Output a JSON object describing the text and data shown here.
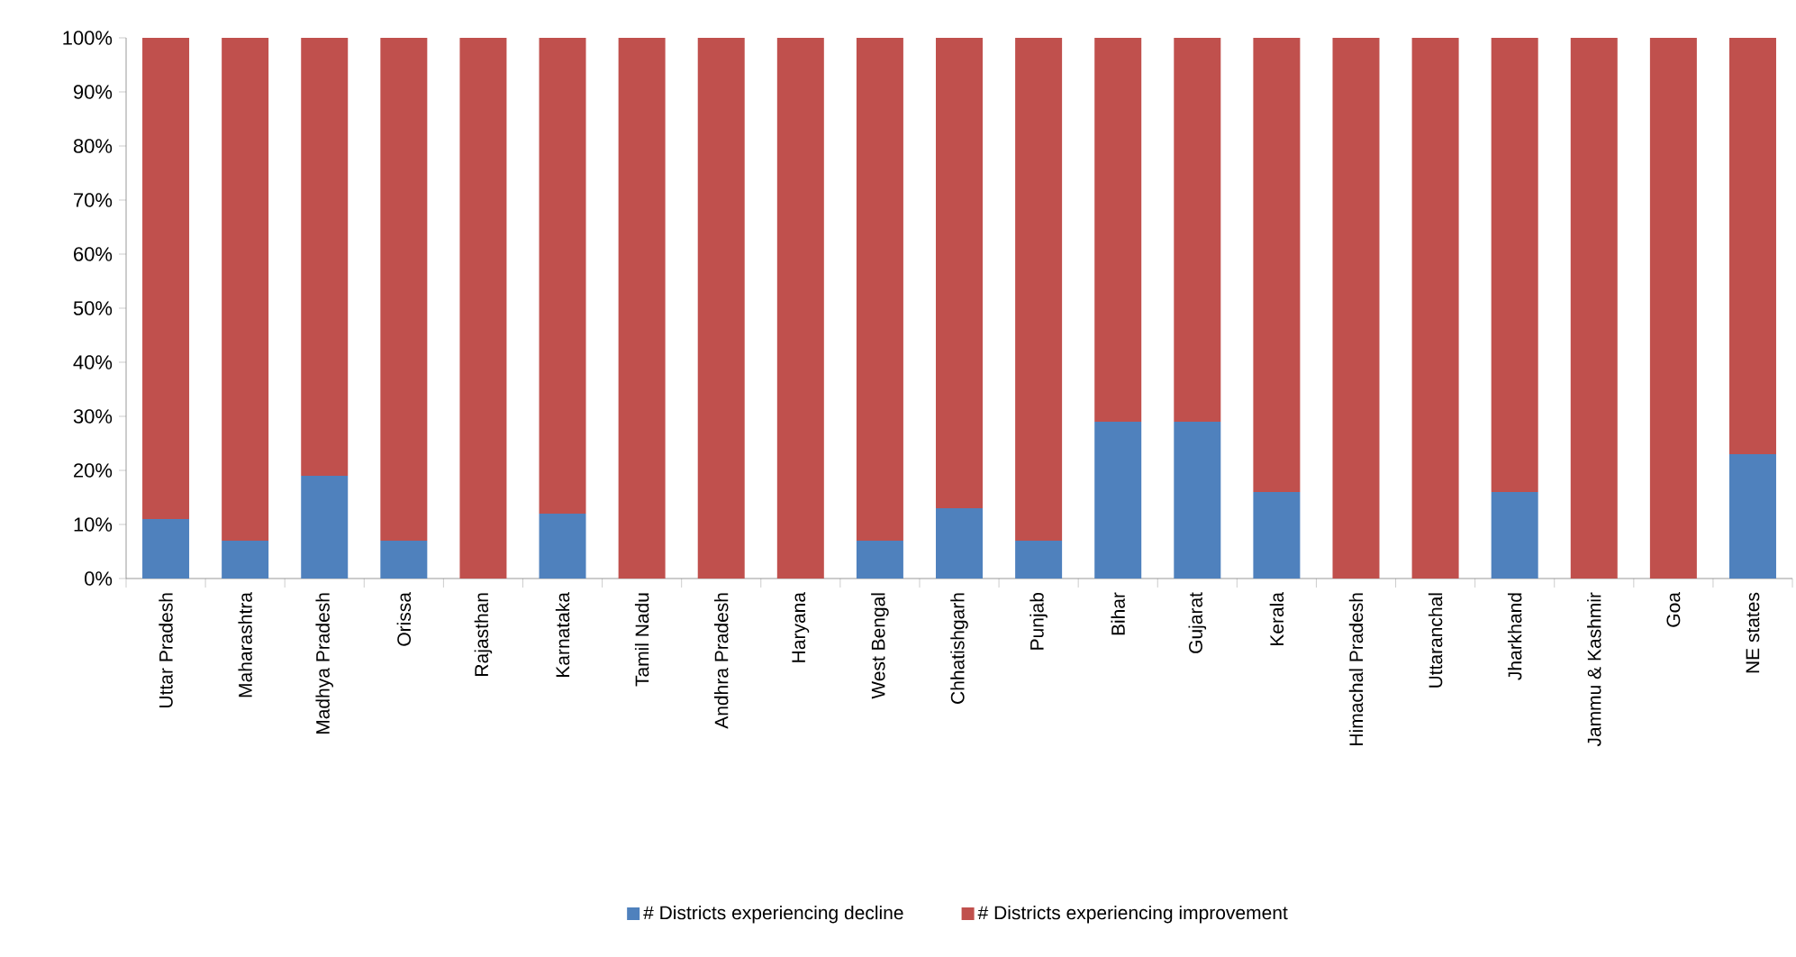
{
  "chart_data": {
    "type": "bar",
    "stacked": true,
    "categories": [
      "Uttar Pradesh",
      "Maharashtra",
      "Madhya Pradesh",
      "Orissa",
      "Rajasthan",
      "Karnataka",
      "Tamil Nadu",
      "Andhra Pradesh",
      "Haryana",
      "West Bengal",
      "Chhatishgarh",
      "Punjab",
      "Bihar",
      "Gujarat",
      "Kerala",
      "Himachal Pradesh",
      "Uttaranchal",
      "Jharkhand",
      "Jammu & Kashmir",
      "Goa",
      "NE states"
    ],
    "series": [
      {
        "name": "# Districts experiencing decline",
        "color": "#4f81bd",
        "values": [
          11,
          7,
          19,
          7,
          0,
          12,
          0,
          0,
          0,
          7,
          13,
          7,
          29,
          29,
          16,
          0,
          0,
          16,
          0,
          0,
          23
        ]
      },
      {
        "name": "# Districts experiencing improvement",
        "color": "#c0504d",
        "values": [
          89,
          93,
          81,
          93,
          100,
          88,
          100,
          100,
          100,
          93,
          87,
          93,
          71,
          71,
          84,
          100,
          100,
          84,
          100,
          100,
          77
        ]
      }
    ],
    "ylim": [
      0,
      100
    ],
    "yticks": [
      {
        "value": 0,
        "label": "0%"
      },
      {
        "value": 10,
        "label": "10%"
      },
      {
        "value": 20,
        "label": "20%"
      },
      {
        "value": 30,
        "label": "30%"
      },
      {
        "value": 40,
        "label": "40%"
      },
      {
        "value": 50,
        "label": "50%"
      },
      {
        "value": 60,
        "label": "60%"
      },
      {
        "value": 70,
        "label": "70%"
      },
      {
        "value": 80,
        "label": "80%"
      },
      {
        "value": 90,
        "label": "90%"
      },
      {
        "value": 100,
        "label": "100%"
      }
    ],
    "grid": false,
    "legend": "bottom"
  }
}
